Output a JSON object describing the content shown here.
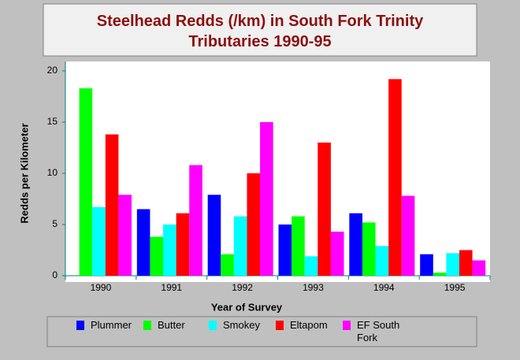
{
  "chart_data": {
    "type": "bar",
    "title": "Steelhead Redds (/km) in South Fork Trinity Tributaries 1990-95",
    "xlabel": "Year of Survey",
    "ylabel": "Redds per Kilometer",
    "categories": [
      "1990",
      "1991",
      "1992",
      "1993",
      "1994",
      "1995"
    ],
    "series": [
      {
        "name": "Plummer",
        "color": "#0000ff",
        "values": [
          0,
          6.5,
          7.9,
          5.0,
          6.1,
          2.1
        ]
      },
      {
        "name": "Butter",
        "color": "#00ff00",
        "values": [
          18.3,
          3.8,
          2.1,
          5.8,
          5.2,
          0.3
        ]
      },
      {
        "name": "Smokey",
        "color": "#00ffff",
        "values": [
          6.7,
          5.0,
          5.8,
          1.9,
          2.9,
          2.2
        ]
      },
      {
        "name": "Eltapom",
        "color": "#ff0000",
        "values": [
          13.8,
          6.1,
          10.0,
          13.0,
          19.2,
          2.5
        ]
      },
      {
        "name": "EF South Fork",
        "color": "#ff00ff",
        "values": [
          7.9,
          10.8,
          15.0,
          4.3,
          7.8,
          1.5
        ]
      }
    ],
    "ylim": [
      0,
      20
    ],
    "yticks": [
      0,
      5,
      10,
      15,
      20
    ],
    "grid": false
  }
}
